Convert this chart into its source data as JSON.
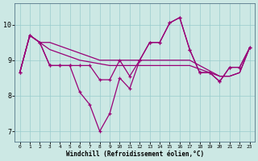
{
  "xlabel": "Windchill (Refroidissement éolien,°C)",
  "background_color": "#cce8e4",
  "line_color": "#990077",
  "grid_color": "#99cccc",
  "xlim": [
    -0.5,
    23.5
  ],
  "ylim": [
    6.7,
    10.6
  ],
  "yticks": [
    7,
    8,
    9,
    10
  ],
  "xticks": [
    0,
    1,
    2,
    3,
    4,
    5,
    6,
    7,
    8,
    9,
    10,
    11,
    12,
    13,
    14,
    15,
    16,
    17,
    18,
    19,
    20,
    21,
    22,
    23
  ],
  "series_jagged1": [
    8.65,
    9.7,
    9.5,
    8.85,
    8.85,
    8.85,
    8.1,
    7.75,
    7.0,
    7.5,
    8.5,
    8.2,
    9.0,
    9.5,
    9.5,
    10.05,
    10.2,
    9.3,
    8.65,
    8.65,
    8.4,
    8.8,
    8.8,
    9.35
  ],
  "series_jagged2": [
    8.65,
    9.7,
    9.5,
    8.85,
    8.85,
    8.85,
    8.85,
    8.85,
    8.45,
    8.45,
    9.0,
    8.55,
    9.0,
    9.5,
    9.5,
    10.05,
    10.2,
    9.3,
    8.65,
    8.65,
    8.4,
    8.8,
    8.8,
    9.35
  ],
  "series_trend1": [
    8.65,
    9.7,
    9.5,
    9.3,
    9.2,
    9.1,
    9.0,
    8.95,
    8.9,
    8.85,
    8.85,
    8.85,
    8.85,
    8.85,
    8.85,
    8.85,
    8.85,
    8.85,
    8.75,
    8.65,
    8.55,
    8.55,
    8.65,
    9.35
  ],
  "series_trend2": [
    8.65,
    9.7,
    9.5,
    9.5,
    9.4,
    9.3,
    9.2,
    9.1,
    9.0,
    9.0,
    9.0,
    9.0,
    9.0,
    9.0,
    9.0,
    9.0,
    9.0,
    9.0,
    8.85,
    8.7,
    8.55,
    8.55,
    8.65,
    9.35
  ]
}
